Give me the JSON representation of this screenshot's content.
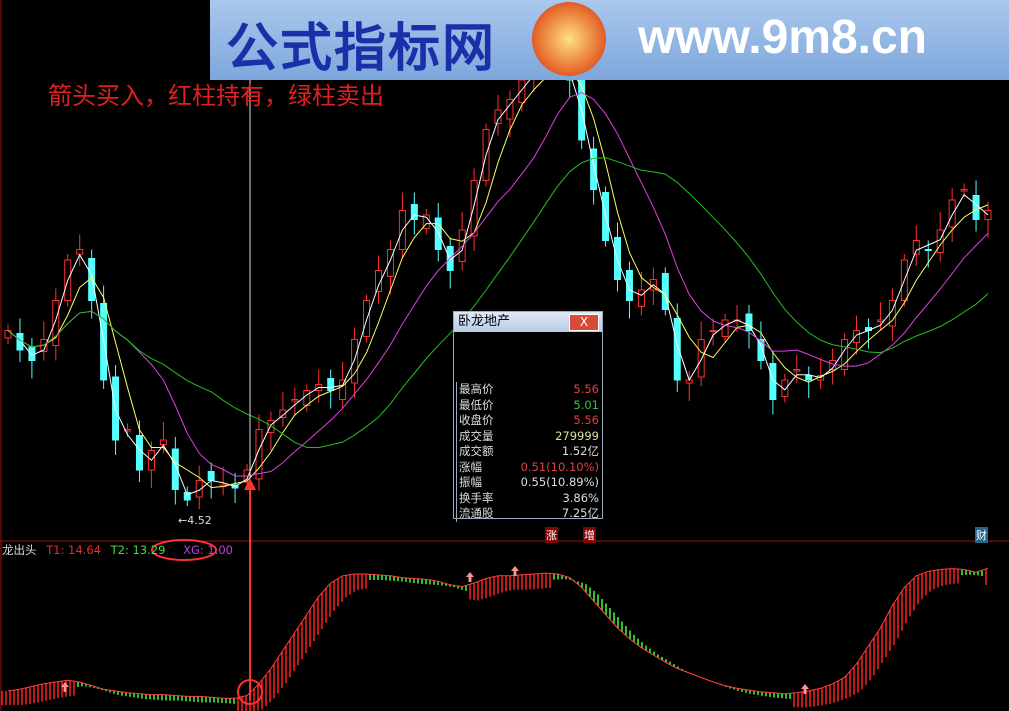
{
  "banner": {
    "site_name": "公式指标网",
    "url": "www.9m8.cn"
  },
  "tip": "箭头买入，红柱持有，绿柱卖出",
  "low_label": "4.52",
  "popup": {
    "title": "卧龙地产",
    "close": "X",
    "rows": [
      {
        "label": "最高价",
        "value": "5.56",
        "color": "#e04040"
      },
      {
        "label": "最低价",
        "value": "5.01",
        "color": "#40c040"
      },
      {
        "label": "收盘价",
        "value": "5.56",
        "color": "#e04040"
      },
      {
        "label": "成交量",
        "value": "279999",
        "color": "#e0e0a0"
      },
      {
        "label": "成交额",
        "value": "1.52亿",
        "color": "#dddddd"
      },
      {
        "label": "涨幅",
        "value": "0.51(10.10%)",
        "color": "#e04040"
      },
      {
        "label": "振幅",
        "value": "0.55(10.89%)",
        "color": "#dddddd"
      },
      {
        "label": "换手率",
        "value": "3.86%",
        "color": "#dddddd"
      },
      {
        "label": "流通股",
        "value": "7.25亿",
        "color": "#dddddd"
      }
    ]
  },
  "indicator": {
    "name": "龙出头",
    "t1": "T1: 14.64",
    "t2": "T2: 13.29",
    "xg": "XG: 1.00"
  },
  "tags": {
    "zhang": "涨",
    "zeng": "增",
    "cai": "财"
  },
  "colors": {
    "up": "#ff3030",
    "down": "#54ffff",
    "ma5": "#ffffff",
    "ma10": "#ffff60",
    "ma30": "#e040e0",
    "ma60": "#20c020",
    "bar_up": "#ff2020",
    "bar_down": "#40ff40"
  },
  "chart_data": [
    {
      "type": "candlestick",
      "title": "",
      "ylim": [
        4.4,
        7.7
      ],
      "annotations": [
        "4.52"
      ],
      "close": [
        5.77,
        5.64,
        5.57,
        5.71,
        5.97,
        6.24,
        6.31,
        5.97,
        5.44,
        5.04,
        5.11,
        4.84,
        4.97,
        5.04,
        4.71,
        4.64,
        4.77,
        4.77,
        4.74,
        4.72,
        4.84,
        5.11,
        5.17,
        5.24,
        5.31,
        5.37,
        5.41,
        5.37,
        5.44,
        5.71,
        5.97,
        6.17,
        6.31,
        6.57,
        6.51,
        6.54,
        6.31,
        6.17,
        6.44,
        6.77,
        7.11,
        7.24,
        7.31,
        7.44,
        7.51,
        7.57,
        7.54,
        7.44,
        7.04,
        6.71,
        6.37,
        6.11,
        5.97,
        6.04,
        6.11,
        5.91,
        5.44,
        5.44,
        5.71,
        5.77,
        5.84,
        5.84,
        5.77,
        5.57,
        5.31,
        5.44,
        5.51,
        5.44,
        5.47,
        5.57,
        5.71,
        5.77,
        5.77,
        5.84,
        5.97,
        6.24,
        6.37,
        6.31,
        6.44,
        6.64,
        6.71,
        6.51,
        6.57
      ]
    },
    {
      "type": "bar",
      "title": "龙出头",
      "series": [
        {
          "name": "T1",
          "last": 14.64,
          "values": [
            1,
            1.2,
            1.5,
            1.8,
            2,
            2.2,
            2,
            1.6,
            1.2,
            1,
            0.8,
            0.7,
            0.6,
            0.6,
            0.5,
            0.4,
            0.4,
            0.3,
            0.2,
            0.2,
            0.5,
            1.8,
            3.5,
            5.5,
            7.5,
            9.5,
            11.5,
            13,
            13.8,
            14,
            14,
            13.9,
            13.8,
            13.6,
            13.5,
            13.4,
            13.2,
            12.8,
            12.6,
            13,
            13.5,
            13.8,
            13.8,
            13.9,
            14,
            14.1,
            14,
            13.6,
            12.5,
            11,
            9.5,
            8,
            6.8,
            5.8,
            5,
            4.2,
            3.5,
            3,
            2.5,
            2,
            1.6,
            1.3,
            1.1,
            0.9,
            0.8,
            0.7,
            0.8,
            1,
            1.3,
            1.8,
            2.5,
            4,
            6,
            8,
            10.5,
            12.5,
            13.8,
            14.3,
            14.5,
            14.6,
            14.5,
            14.2,
            14.64
          ]
        },
        {
          "name": "T2",
          "last": 13.29
        },
        {
          "name": "XG",
          "last": 1.0
        }
      ]
    }
  ]
}
